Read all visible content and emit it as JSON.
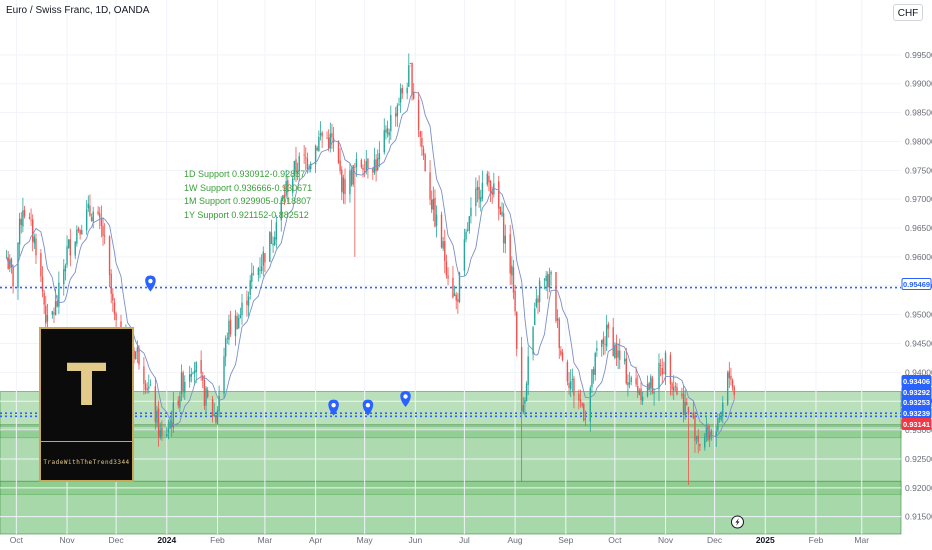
{
  "header": {
    "symbol_title": "Euro / Swiss Franc, 1D, OANDA",
    "currency_button": "CHF"
  },
  "annotations": {
    "support_lines": [
      "1D Support 0.930912-0.92867",
      "1W Support 0.936666-0.930671",
      "1M Support 0.929905-0.918807",
      "1Y Support 0.921152-0.882512"
    ]
  },
  "logo": {
    "letter": "T",
    "caption": "TradeWithTheTrend3344"
  },
  "colors": {
    "up": "#26a69a",
    "down": "#ef5350",
    "ma": "#7b8fc7",
    "zone": "#81c784",
    "dotted": "#2962ff",
    "marker": "#2962ff",
    "text": "#131722",
    "axis": "#6a6d78"
  },
  "chart_data": {
    "type": "candlestick",
    "x_axis_labels": [
      "Oct",
      "Nov",
      "Dec",
      "2024",
      "Feb",
      "Mar",
      "Apr",
      "May",
      "Jun",
      "Jul",
      "Aug",
      "Sep",
      "Oct",
      "Nov",
      "Dec",
      "2025",
      "Feb",
      "Mar"
    ],
    "y_axis_labels": [
      "0.99500",
      "0.99000",
      "0.98500",
      "0.98000",
      "0.97500",
      "0.97000",
      "0.96500",
      "0.96000",
      "0.95500",
      "0.95000",
      "0.94500",
      "0.94000",
      "0.93500",
      "0.93000",
      "0.92500",
      "0.92000",
      "0.91500"
    ],
    "ylim": [
      0.912,
      1.0
    ],
    "price_labels": [
      {
        "value": "0.95469",
        "style": "outline"
      },
      {
        "value": "0.93406",
        "style": "blue"
      },
      {
        "value": "0.93292",
        "style": "blue"
      },
      {
        "value": "0.93253",
        "style": "blue"
      },
      {
        "value": "0.93239",
        "style": "blue"
      },
      {
        "value": "0.93141",
        "style": "red"
      }
    ],
    "horizontal_levels": [
      0.95469,
      0.93292,
      0.93239
    ],
    "support_zones": [
      {
        "from": 0.930671,
        "to": 0.936666
      },
      {
        "from": 0.92867,
        "to": 0.930912
      },
      {
        "from": 0.918807,
        "to": 0.929905
      },
      {
        "from": 0.912,
        "to": 0.921152
      }
    ],
    "path": [
      [
        "2023-09-25",
        0.96
      ],
      [
        "2023-09-29",
        0.956
      ],
      [
        "2023-10-05",
        0.969
      ],
      [
        "2023-10-13",
        0.962
      ],
      [
        "2023-10-20",
        0.948
      ],
      [
        "2023-10-26",
        0.952
      ],
      [
        "2023-11-01",
        0.961
      ],
      [
        "2023-11-09",
        0.966
      ],
      [
        "2023-11-16",
        0.968
      ],
      [
        "2023-11-23",
        0.964
      ],
      [
        "2023-12-01",
        0.947
      ],
      [
        "2023-12-08",
        0.945
      ],
      [
        "2023-12-15",
        0.943
      ],
      [
        "2023-12-22",
        0.936
      ],
      [
        "2023-12-29",
        0.928
      ],
      [
        "2024-01-04",
        0.932
      ],
      [
        "2024-01-10",
        0.938
      ],
      [
        "2024-01-17",
        0.942
      ],
      [
        "2024-01-24",
        0.936
      ],
      [
        "2024-01-31",
        0.932
      ],
      [
        "2024-02-07",
        0.947
      ],
      [
        "2024-02-15",
        0.95
      ],
      [
        "2024-02-22",
        0.956
      ],
      [
        "2024-02-29",
        0.96
      ],
      [
        "2024-03-07",
        0.965
      ],
      [
        "2024-03-14",
        0.972
      ],
      [
        "2024-03-21",
        0.976
      ],
      [
        "2024-03-28",
        0.977
      ],
      [
        "2024-04-04",
        0.981
      ],
      [
        "2024-04-11",
        0.98
      ],
      [
        "2024-04-18",
        0.972
      ],
      [
        "2024-04-25",
        0.975
      ],
      [
        "2024-05-02",
        0.977
      ],
      [
        "2024-05-09",
        0.976
      ],
      [
        "2024-05-16",
        0.983
      ],
      [
        "2024-05-23",
        0.988
      ],
      [
        "2024-05-29",
        0.992
      ],
      [
        "2024-06-05",
        0.979
      ],
      [
        "2024-06-12",
        0.968
      ],
      [
        "2024-06-19",
        0.96
      ],
      [
        "2024-06-26",
        0.952
      ],
      [
        "2024-07-03",
        0.965
      ],
      [
        "2024-07-10",
        0.972
      ],
      [
        "2024-07-17",
        0.973
      ],
      [
        "2024-07-24",
        0.966
      ],
      [
        "2024-07-31",
        0.955
      ],
      [
        "2024-08-05",
        0.932
      ],
      [
        "2024-08-09",
        0.942
      ],
      [
        "2024-08-16",
        0.955
      ],
      [
        "2024-08-23",
        0.956
      ],
      [
        "2024-08-30",
        0.942
      ],
      [
        "2024-09-06",
        0.937
      ],
      [
        "2024-09-13",
        0.933
      ],
      [
        "2024-09-20",
        0.943
      ],
      [
        "2024-09-27",
        0.947
      ],
      [
        "2024-10-04",
        0.942
      ],
      [
        "2024-10-11",
        0.938
      ],
      [
        "2024-10-18",
        0.937
      ],
      [
        "2024-10-25",
        0.938
      ],
      [
        "2024-11-01",
        0.942
      ],
      [
        "2024-11-08",
        0.937
      ],
      [
        "2024-11-15",
        0.933
      ],
      [
        "2024-11-22",
        0.928
      ],
      [
        "2024-11-29",
        0.93
      ],
      [
        "2024-12-04",
        0.93
      ],
      [
        "2024-12-08",
        0.938
      ],
      [
        "2024-12-11",
        0.94
      ],
      [
        "2024-12-15",
        0.932
      ]
    ],
    "extremes": [
      {
        "date": "2024-04-25",
        "low": 0.96
      },
      {
        "date": "2024-05-29",
        "high": 0.993
      },
      {
        "date": "2024-08-05",
        "low": 0.921
      },
      {
        "date": "2024-11-15",
        "low": 0.9205
      }
    ],
    "markers": [
      "2023-12-22",
      "2024-04-12",
      "2024-05-03",
      "2024-05-26"
    ],
    "lightning_marker": "2024-12-15"
  }
}
